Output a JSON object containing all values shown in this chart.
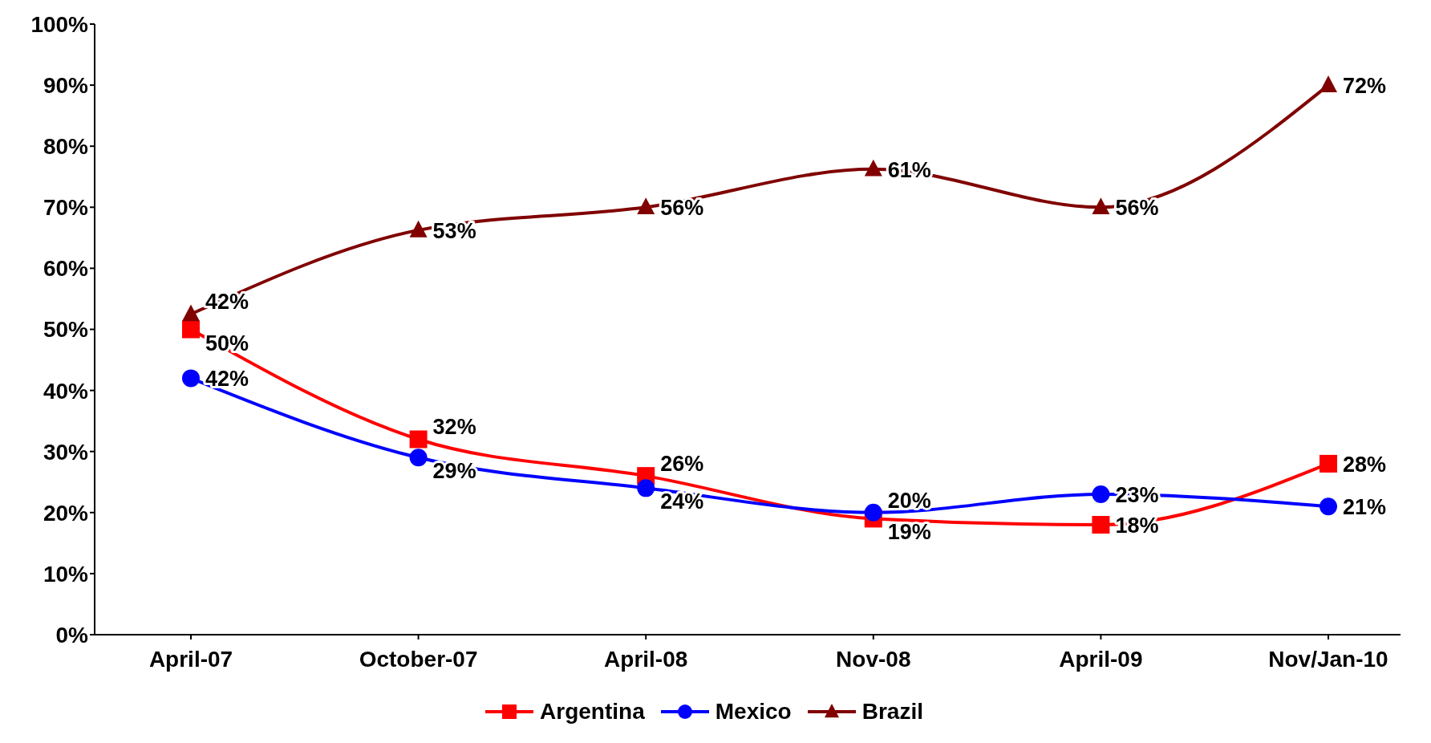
{
  "chart_data": {
    "type": "line",
    "categories": [
      "April-07",
      "October-07",
      "April-08",
      "Nov-08",
      "April-09",
      "Nov/Jan-10"
    ],
    "series": [
      {
        "name": "Argentina",
        "color": "#ff0000",
        "marker": "square",
        "values": [
          50,
          32,
          26,
          19,
          18,
          28
        ],
        "value_labels": [
          "50%",
          "32%",
          "26%",
          "19%",
          "18%",
          "28%"
        ]
      },
      {
        "name": "Mexico",
        "color": "#0000ff",
        "marker": "circle",
        "values": [
          42,
          29,
          24,
          20,
          23,
          21
        ],
        "value_labels": [
          "42%",
          "29%",
          "24%",
          "20%",
          "23%",
          "21%"
        ]
      },
      {
        "name": "Brazil",
        "color": "#800000",
        "marker": "triangle",
        "axis": "y2",
        "values": [
          42,
          53,
          56,
          61,
          56,
          72
        ],
        "value_labels": [
          "42%",
          "53%",
          "56%",
          "61%",
          "56%",
          "72%"
        ]
      }
    ],
    "ylim": [
      0,
      100
    ],
    "yticks": [
      {
        "value": 0,
        "label": "0%"
      },
      {
        "value": 10,
        "label": "10%"
      },
      {
        "value": 20,
        "label": "20%"
      },
      {
        "value": 30,
        "label": "30%"
      },
      {
        "value": 40,
        "label": "40%"
      },
      {
        "value": 50,
        "label": "50%"
      },
      {
        "value": 60,
        "label": "60%"
      },
      {
        "value": 70,
        "label": "70%"
      },
      {
        "value": 80,
        "label": "80%"
      },
      {
        "value": 90,
        "label": "90%"
      },
      {
        "value": 100,
        "label": "100%"
      }
    ],
    "y2lim": [
      0,
      80
    ],
    "grid": false,
    "legend": "bottom",
    "line_style": "solid"
  }
}
